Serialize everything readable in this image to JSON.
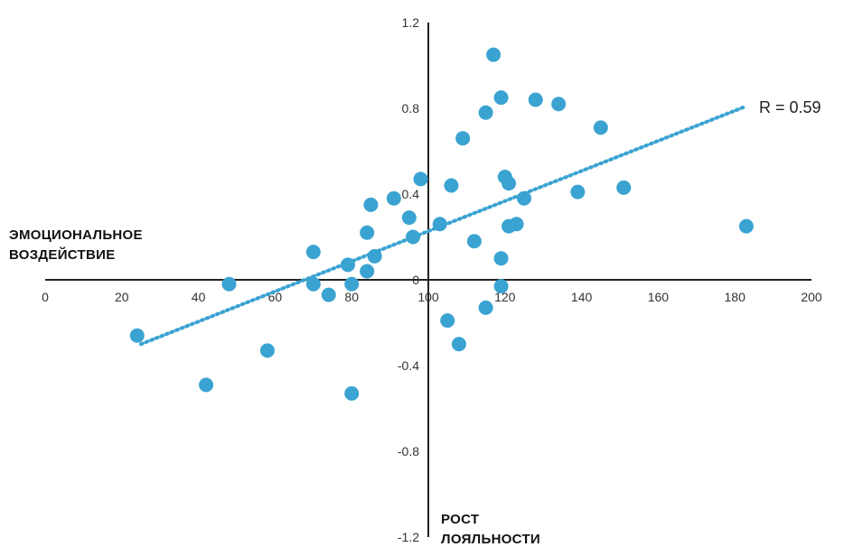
{
  "chart_data": {
    "type": "scatter",
    "xlabel": "РОСТ ЛОЯЛЬНОСТИ",
    "xlabel_lines": [
      "РОСТ",
      "ЛОЯЛЬНОСТИ"
    ],
    "ylabel": "ЭМОЦИОНАЛЬНОЕ ВОЗДЕЙСТВИЕ",
    "ylabel_lines": [
      "ЭМОЦИОНАЛЬНОЕ",
      "ВОЗДЕЙСТВИЕ"
    ],
    "xlim": [
      0,
      200
    ],
    "ylim": [
      -1.2,
      1.2
    ],
    "x_ticks": [
      0,
      20,
      40,
      60,
      80,
      100,
      120,
      140,
      160,
      180,
      200
    ],
    "x_tick_labels": [
      "0",
      "20",
      "40",
      "60",
      "80",
      "100",
      "120",
      "140",
      "160",
      "180",
      "200"
    ],
    "y_ticks": [
      1.2,
      0.8,
      0.4,
      0,
      -0.4,
      -0.8,
      -1.2
    ],
    "y_tick_labels": [
      "1.2",
      "0.8",
      "0.4",
      "0",
      "-0.4",
      "-0.8",
      "-1.2"
    ],
    "y_axis_at_x": 100,
    "x_axis_at_y": 0,
    "grid": false,
    "points": [
      {
        "x": 24,
        "y": -0.26
      },
      {
        "x": 42,
        "y": -0.49
      },
      {
        "x": 48,
        "y": -0.02
      },
      {
        "x": 58,
        "y": -0.33
      },
      {
        "x": 70,
        "y": 0.13
      },
      {
        "x": 70,
        "y": -0.02
      },
      {
        "x": 74,
        "y": -0.07
      },
      {
        "x": 79,
        "y": 0.07
      },
      {
        "x": 80,
        "y": -0.02
      },
      {
        "x": 80,
        "y": -0.53
      },
      {
        "x": 84,
        "y": 0.22
      },
      {
        "x": 84,
        "y": 0.04
      },
      {
        "x": 85,
        "y": 0.35
      },
      {
        "x": 86,
        "y": 0.11
      },
      {
        "x": 91,
        "y": 0.38
      },
      {
        "x": 95,
        "y": 0.29
      },
      {
        "x": 96,
        "y": 0.2
      },
      {
        "x": 98,
        "y": 0.47
      },
      {
        "x": 103,
        "y": 0.26
      },
      {
        "x": 105,
        "y": -0.19
      },
      {
        "x": 106,
        "y": 0.44
      },
      {
        "x": 108,
        "y": -0.3
      },
      {
        "x": 109,
        "y": 0.66
      },
      {
        "x": 112,
        "y": 0.18
      },
      {
        "x": 115,
        "y": 0.78
      },
      {
        "x": 115,
        "y": -0.13
      },
      {
        "x": 117,
        "y": 1.05
      },
      {
        "x": 119,
        "y": 0.85
      },
      {
        "x": 119,
        "y": 0.1
      },
      {
        "x": 119,
        "y": -0.03
      },
      {
        "x": 120,
        "y": 0.48
      },
      {
        "x": 121,
        "y": 0.25
      },
      {
        "x": 121,
        "y": 0.45
      },
      {
        "x": 123,
        "y": 0.26
      },
      {
        "x": 125,
        "y": 0.38
      },
      {
        "x": 128,
        "y": 0.84
      },
      {
        "x": 134,
        "y": 0.82
      },
      {
        "x": 139,
        "y": 0.41
      },
      {
        "x": 145,
        "y": 0.71
      },
      {
        "x": 151,
        "y": 0.43
      },
      {
        "x": 183,
        "y": 0.25
      }
    ],
    "trendline": {
      "x": [
        25,
        183
      ],
      "y": [
        -0.3,
        0.81
      ],
      "style": "dotted"
    },
    "annotation": "R = 0.59",
    "color": "#3aa3d1"
  }
}
